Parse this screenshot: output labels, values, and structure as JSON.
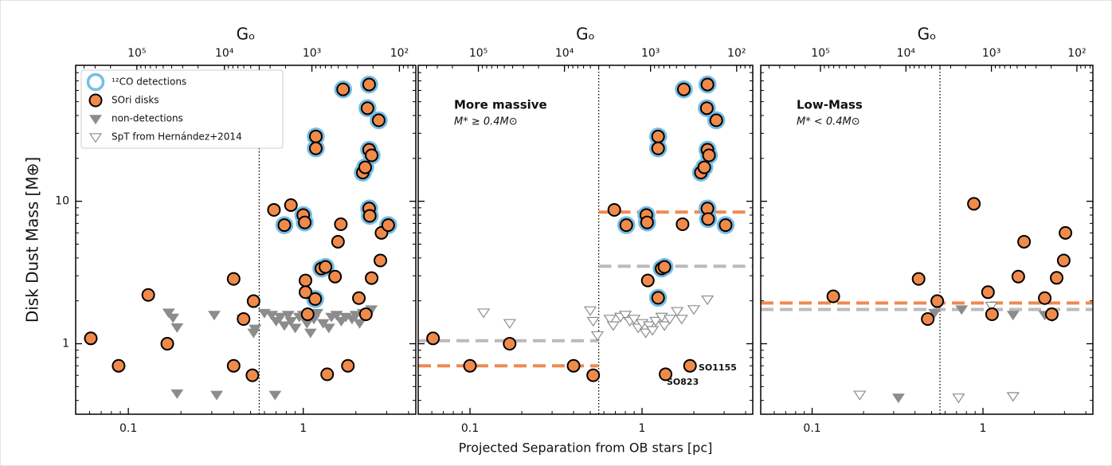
{
  "chart_data": [
    {
      "type": "scatter",
      "ylabel": "Disk Dust Mass [M⊕]",
      "x2label": "Gₒ",
      "log_x": true,
      "log_y": true,
      "xlim": [
        0.05,
        4.4
      ],
      "ylim": [
        0.32,
        90
      ],
      "xticks": [
        0.1,
        1
      ],
      "yticks": [
        1,
        10
      ],
      "show_ytick_labels": true,
      "x2lim": [
        500000,
        65
      ],
      "x2ticks": [
        {
          "value": 100000,
          "label": "10⁵"
        },
        {
          "value": 10000,
          "label": "10⁴"
        },
        {
          "value": 1000,
          "label": "10³"
        },
        {
          "value": 100,
          "label": "10²"
        }
      ],
      "vline": 0.56,
      "co_color": "#74bde8",
      "legend": {
        "loc": "upper left",
        "entries": [
          {
            "label": "¹²CO detections",
            "marker": "ring",
            "color": "#74bde8"
          },
          {
            "label": "SOri disks",
            "marker": "circle",
            "color": "#f08a4b"
          },
          {
            "label": "non-detections",
            "marker": "triangle",
            "color": "#8c8c8c"
          },
          {
            "label": "SpT from Hernández+2014",
            "marker": "open-triangle",
            "color": "#8c8c8c"
          }
        ]
      },
      "series": [
        {
          "marker": "triangle",
          "color": "#8c8c8c",
          "x": [
            0.17,
            0.18,
            0.19,
            0.19,
            0.31,
            0.32,
            0.45,
            0.52,
            0.53,
            0.69,
            0.66,
            0.7,
            0.74,
            0.78,
            0.82,
            0.85,
            0.9,
            0.95,
            1.0,
            1.05,
            1.1,
            1.15,
            1.2,
            1.3,
            1.4,
            1.45,
            1.55,
            1.65,
            1.75,
            1.9,
            2.0,
            2.1,
            2.2,
            2.35,
            2.45,
            0.6
          ],
          "values": [
            1.66,
            1.53,
            1.31,
            0.45,
            1.6,
            0.44,
            1.5,
            1.2,
            1.28,
            0.44,
            1.6,
            1.45,
            1.55,
            1.35,
            1.6,
            1.45,
            1.3,
            1.55,
            1.6,
            1.4,
            1.2,
            1.5,
            1.65,
            1.4,
            1.3,
            1.55,
            1.6,
            1.45,
            1.55,
            1.5,
            1.6,
            1.4,
            1.65,
            1.6,
            1.75,
            1.65
          ]
        },
        {
          "marker": "circle",
          "color": "#f08a4b",
          "x": [
            0.061,
            0.088,
            0.13,
            0.167,
            0.4,
            0.4,
            0.456,
            0.512,
            0.52,
            0.68,
            0.78,
            0.85,
            1.0,
            1.02,
            1.03,
            1.03,
            1.06,
            1.17,
            1.18,
            1.18,
            1.27,
            1.34,
            1.37,
            1.52,
            1.58,
            1.64,
            1.69,
            1.8,
            2.08,
            2.19,
            2.26,
            2.28,
            2.38,
            2.33,
            2.38,
            2.46,
            2.38,
            2.4,
            2.46,
            2.7,
            2.76,
            2.8,
            3.06
          ],
          "values": [
            1.09,
            0.7,
            2.2,
            1.0,
            2.85,
            0.7,
            1.49,
            0.6,
            1.99,
            8.7,
            6.8,
            9.4,
            8.0,
            7.1,
            2.78,
            2.3,
            1.61,
            2.06,
            28.5,
            23.5,
            3.37,
            3.46,
            0.61,
            2.96,
            5.2,
            6.9,
            61,
            0.7,
            2.09,
            15.9,
            17.3,
            1.61,
            66,
            45,
            23,
            21,
            8.9,
            7.9,
            2.89,
            37,
            3.84,
            6.0,
            6.8
          ],
          "co": [
            false,
            false,
            false,
            false,
            false,
            false,
            false,
            false,
            false,
            false,
            true,
            false,
            true,
            true,
            false,
            false,
            false,
            true,
            true,
            true,
            true,
            true,
            false,
            false,
            false,
            false,
            true,
            false,
            false,
            true,
            true,
            false,
            true,
            true,
            true,
            true,
            true,
            true,
            false,
            true,
            false,
            false,
            true
          ]
        }
      ]
    },
    {
      "type": "scatter",
      "xlabel": "Projected Separation from OB stars [pc]",
      "x2label": "Gₒ",
      "log_x": true,
      "log_y": true,
      "xlim": [
        0.05,
        4.4
      ],
      "ylim": [
        0.32,
        90
      ],
      "xticks": [
        0.1,
        1
      ],
      "yticks": [
        1,
        10
      ],
      "show_ytick_labels": false,
      "x2lim": [
        500000,
        65
      ],
      "x2ticks": [
        {
          "value": 100000,
          "label": "10⁵"
        },
        {
          "value": 10000,
          "label": "10⁴"
        },
        {
          "value": 1000,
          "label": "10³"
        },
        {
          "value": 100,
          "label": "10²"
        }
      ],
      "vline": 0.56,
      "co_color": "#74bde8",
      "annotations": [
        "More massive",
        "M* ≥ 0.4M⊙",
        "SO1155",
        "SO823"
      ],
      "hlines": [
        {
          "color": "#bbbbbb",
          "x": [
            0.05,
            0.56
          ],
          "value": 1.05
        },
        {
          "color": "#ef8a50",
          "x": [
            0.05,
            0.56
          ],
          "value": 0.7
        },
        {
          "color": "#ef8a50",
          "x": [
            0.56,
            4.4
          ],
          "value": 8.4
        },
        {
          "color": "#bbbbbb",
          "x": [
            0.56,
            4.4
          ],
          "value": 3.5
        }
      ],
      "series": [
        {
          "marker": "open-triangle",
          "color": "#8c8c8c",
          "x": [
            0.12,
            0.17,
            0.5,
            0.52,
            0.55,
            0.65,
            0.68,
            0.75,
            0.8,
            0.85,
            0.9,
            0.95,
            1.0,
            1.05,
            1.1,
            1.15,
            1.2,
            1.3,
            1.35,
            1.45,
            1.6,
            1.7,
            2.0,
            2.4
          ],
          "values": [
            1.66,
            1.4,
            1.72,
            1.45,
            1.15,
            1.5,
            1.35,
            1.55,
            1.6,
            1.45,
            1.5,
            1.3,
            1.4,
            1.2,
            1.35,
            1.25,
            1.45,
            1.55,
            1.35,
            1.5,
            1.7,
            1.5,
            1.75,
            2.05
          ]
        },
        {
          "marker": "circle",
          "color": "#f08a4b",
          "x": [
            0.061,
            0.1,
            0.17,
            0.4,
            0.52,
            0.69,
            0.81,
            1.06,
            1.07,
            1.08,
            1.24,
            1.24,
            1.24,
            1.3,
            1.35,
            1.37,
            1.72,
            1.75,
            1.9,
            2.2,
            2.3,
            2.4,
            2.38,
            2.4,
            2.45,
            2.4,
            2.42,
            2.7,
            3.06
          ],
          "values": [
            1.09,
            0.7,
            1.0,
            0.7,
            0.6,
            8.7,
            6.8,
            8.0,
            7.1,
            2.78,
            2.1,
            28.5,
            23.5,
            3.37,
            3.46,
            0.61,
            6.9,
            61,
            0.7,
            15.9,
            17.3,
            66,
            45,
            23,
            21,
            8.9,
            7.5,
            37,
            6.8
          ],
          "co": [
            false,
            false,
            false,
            false,
            false,
            false,
            true,
            true,
            true,
            false,
            true,
            true,
            true,
            true,
            true,
            false,
            false,
            true,
            false,
            true,
            true,
            true,
            true,
            true,
            true,
            true,
            true,
            true,
            true
          ]
        }
      ]
    },
    {
      "type": "scatter",
      "x2label": "Gₒ",
      "log_x": true,
      "log_y": true,
      "xlim": [
        0.05,
        4.4
      ],
      "ylim": [
        0.32,
        90
      ],
      "xticks": [
        0.1,
        1
      ],
      "yticks": [
        1,
        10
      ],
      "show_ytick_labels": false,
      "x2lim": [
        500000,
        65
      ],
      "x2ticks": [
        {
          "value": 100000,
          "label": "10⁵"
        },
        {
          "value": 10000,
          "label": "10⁴"
        },
        {
          "value": 1000,
          "label": "10³"
        },
        {
          "value": 100,
          "label": "10²"
        }
      ],
      "vline": 0.56,
      "co_color": "#74bde8",
      "annotations": [
        "Low-Mass",
        "M* < 0.4M⊙"
      ],
      "hlines": [
        {
          "color": "#bbbbbb",
          "x": [
            0.05,
            4.4
          ],
          "value": 1.74
        },
        {
          "color": "#ef8a50",
          "x": [
            0.05,
            4.4
          ],
          "value": 1.93
        }
      ],
      "series": [
        {
          "marker": "triangle",
          "color": "#8c8c8c",
          "x": [
            0.32,
            0.52,
            0.75,
            1.5,
            2.3,
            2.55
          ],
          "values": [
            0.42,
            1.65,
            1.75,
            1.6,
            1.6,
            1.55
          ]
        },
        {
          "marker": "open-triangle",
          "color": "#8c8c8c",
          "x": [
            0.19,
            0.72,
            1.5,
            1.12
          ],
          "values": [
            0.44,
            0.42,
            0.43,
            1.85
          ]
        },
        {
          "marker": "circle",
          "color": "#f08a4b",
          "x": [
            0.133,
            0.42,
            0.475,
            0.54,
            0.885,
            1.07,
            1.13,
            1.61,
            1.74,
            2.3,
            2.53,
            2.7,
            2.97,
            3.04
          ],
          "values": [
            2.15,
            2.85,
            1.49,
            1.99,
            9.6,
            2.3,
            1.61,
            2.96,
            5.2,
            2.09,
            1.61,
            2.9,
            3.84,
            6.0
          ]
        }
      ]
    }
  ]
}
